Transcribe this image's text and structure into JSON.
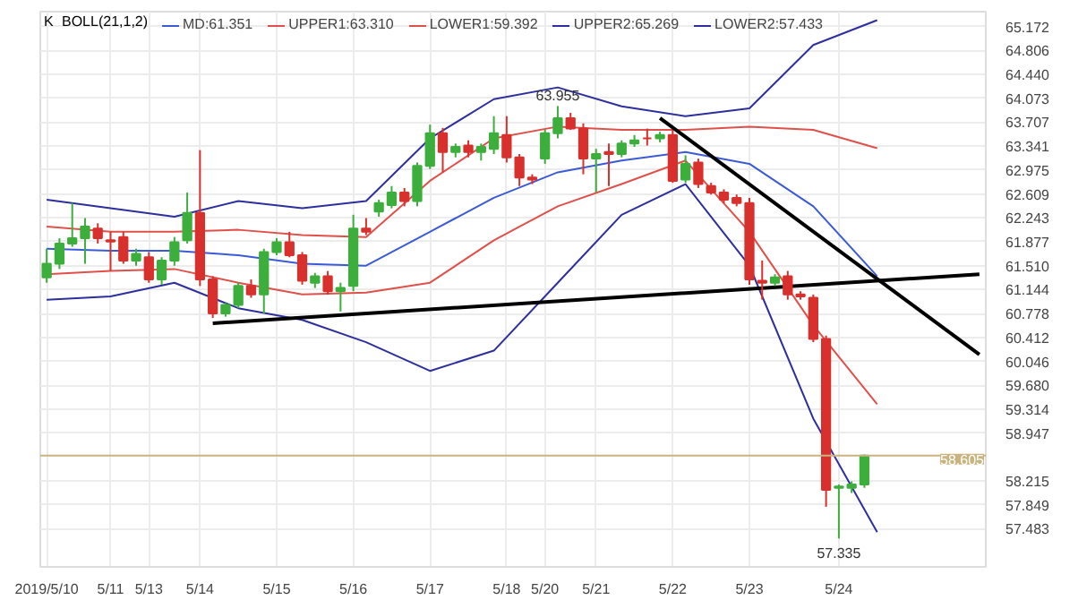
{
  "chart_data": {
    "type": "candlestick",
    "title": "K",
    "subtitle": "BOLL(21,1,2)",
    "categories": [
      "2019/5/10",
      null,
      null,
      null,
      null,
      "5/11",
      null,
      null,
      "5/13",
      null,
      null,
      null,
      "5/14",
      null,
      null,
      null,
      null,
      null,
      "5/15",
      null,
      null,
      null,
      null,
      null,
      "5/16",
      null,
      null,
      null,
      null,
      null,
      "5/17",
      null,
      null,
      null,
      null,
      null,
      "5/18",
      null,
      null,
      "5/20",
      null,
      null,
      null,
      "5/21",
      null,
      null,
      null,
      null,
      null,
      "5/22",
      null,
      null,
      null,
      null,
      null,
      "5/23",
      null,
      null,
      null,
      null,
      null,
      null,
      "5/24",
      null,
      null,
      null,
      null,
      null,
      null,
      null,
      null,
      null,
      null,
      null
    ],
    "ohlc": [
      [
        61.33,
        61.77,
        61.25,
        61.54
      ],
      [
        61.54,
        61.93,
        61.46,
        61.85
      ],
      [
        61.85,
        62.47,
        61.8,
        61.93
      ],
      [
        61.93,
        62.24,
        61.54,
        62.11
      ],
      [
        62.08,
        62.16,
        61.85,
        61.93
      ],
      [
        61.9,
        62.03,
        61.43,
        61.88
      ],
      [
        61.95,
        62.03,
        61.54,
        61.59
      ],
      [
        61.59,
        61.77,
        61.51,
        61.69
      ],
      [
        61.64,
        61.72,
        61.25,
        61.3
      ],
      [
        61.3,
        61.64,
        61.22,
        61.59
      ],
      [
        61.59,
        61.95,
        61.51,
        61.87
      ],
      [
        61.9,
        62.63,
        61.85,
        62.32
      ],
      [
        62.32,
        63.28,
        61.2,
        61.3
      ],
      [
        61.3,
        61.35,
        60.71,
        60.78
      ],
      [
        60.78,
        60.94,
        60.73,
        60.91
      ],
      [
        60.91,
        61.25,
        60.86,
        61.2
      ],
      [
        61.2,
        61.3,
        61.02,
        61.07
      ],
      [
        61.07,
        61.77,
        60.78,
        61.72
      ],
      [
        61.72,
        61.93,
        61.67,
        61.87
      ],
      [
        61.87,
        62.03,
        61.64,
        61.67
      ],
      [
        61.67,
        61.72,
        61.22,
        61.28
      ],
      [
        61.25,
        61.4,
        61.17,
        61.35
      ],
      [
        61.35,
        61.43,
        61.07,
        61.12
      ],
      [
        61.12,
        61.25,
        60.81,
        61.17
      ],
      [
        61.2,
        62.29,
        61.12,
        62.08
      ],
      [
        62.08,
        62.24,
        61.98,
        62.03
      ],
      [
        62.34,
        62.52,
        62.26,
        62.47
      ],
      [
        62.44,
        62.73,
        62.39,
        62.63
      ],
      [
        62.63,
        62.7,
        62.42,
        62.5
      ],
      [
        62.5,
        63.09,
        62.42,
        63.04
      ],
      [
        63.04,
        63.67,
        62.99,
        63.54
      ],
      [
        63.54,
        63.62,
        62.94,
        63.25
      ],
      [
        63.25,
        63.38,
        63.17,
        63.33
      ],
      [
        63.35,
        63.43,
        63.17,
        63.25
      ],
      [
        63.25,
        63.38,
        63.12,
        63.33
      ],
      [
        63.3,
        63.8,
        63.22,
        63.54
      ],
      [
        63.51,
        63.8,
        63.09,
        63.17
      ],
      [
        63.17,
        63.22,
        62.73,
        62.86
      ],
      [
        62.86,
        62.91,
        62.76,
        62.83
      ],
      [
        63.15,
        63.59,
        63.07,
        63.54
      ],
      [
        63.54,
        63.955,
        63.46,
        63.77
      ],
      [
        63.77,
        63.85,
        63.59,
        63.61
      ],
      [
        63.61,
        63.69,
        62.91,
        63.15
      ],
      [
        63.15,
        63.3,
        62.63,
        63.22
      ],
      [
        63.25,
        63.38,
        62.73,
        63.22
      ],
      [
        63.22,
        63.43,
        63.17,
        63.38
      ],
      [
        63.38,
        63.51,
        63.33,
        63.43
      ],
      [
        63.46,
        63.61,
        63.35,
        63.46
      ],
      [
        63.46,
        63.56,
        63.4,
        63.51
      ],
      [
        63.51,
        63.59,
        62.78,
        62.81
      ],
      [
        62.83,
        63.2,
        62.78,
        63.07
      ],
      [
        63.09,
        63.15,
        62.7,
        62.76
      ],
      [
        62.73,
        62.78,
        62.6,
        62.63
      ],
      [
        62.63,
        62.68,
        62.47,
        62.52
      ],
      [
        62.55,
        62.6,
        62.42,
        62.47
      ],
      [
        62.47,
        62.55,
        61.22,
        61.3
      ],
      [
        61.28,
        61.59,
        60.99,
        61.25
      ],
      [
        61.25,
        61.38,
        61.2,
        61.33
      ],
      [
        61.35,
        61.43,
        60.99,
        61.07
      ],
      [
        61.07,
        61.12,
        60.99,
        61.04
      ],
      [
        61.02,
        61.07,
        60.34,
        60.39
      ],
      [
        60.39,
        60.44,
        57.82,
        58.08
      ],
      [
        58.11,
        58.16,
        57.335,
        58.13
      ],
      [
        58.11,
        58.21,
        58.03,
        58.16
      ],
      [
        58.16,
        58.62,
        58.11,
        58.605
      ],
      null,
      null,
      null,
      null,
      null,
      null,
      null,
      null,
      null
    ],
    "colors": [
      "#3cae3c",
      "#3cae3c",
      "#3cae3c",
      "#3cae3c",
      "#d8302c",
      "#d8302c",
      "#d8302c",
      "#3cae3c",
      "#d8302c",
      "#3cae3c",
      "#3cae3c",
      "#3cae3c",
      "#d8302c",
      "#d8302c",
      "#3cae3c",
      "#3cae3c",
      "#d8302c",
      "#3cae3c",
      "#3cae3c",
      "#d8302c",
      "#d8302c",
      "#3cae3c",
      "#d8302c",
      "#3cae3c",
      "#3cae3c",
      "#d8302c",
      "#3cae3c",
      "#3cae3c",
      "#d8302c",
      "#3cae3c",
      "#3cae3c",
      "#d8302c",
      "#3cae3c",
      "#d8302c",
      "#3cae3c",
      "#3cae3c",
      "#d8302c",
      "#d8302c",
      "#d8302c",
      "#3cae3c",
      "#3cae3c",
      "#d8302c",
      "#d8302c",
      "#3cae3c",
      "#d8302c",
      "#3cae3c",
      "#3cae3c",
      "#d8302c",
      "#3cae3c",
      "#d8302c",
      "#3cae3c",
      "#d8302c",
      "#d8302c",
      "#d8302c",
      "#d8302c",
      "#d8302c",
      "#d8302c",
      "#3cae3c",
      "#d8302c",
      "#d8302c",
      "#d8302c",
      "#d8302c",
      "#3cae3c",
      "#3cae3c",
      "#3cae3c",
      null,
      null,
      null,
      null,
      null,
      null,
      null,
      null,
      null
    ],
    "series": [
      {
        "type": "line",
        "name": "MD:61.351",
        "color": "#3b5bd6",
        "values": [
          61.77,
          null,
          null,
          null,
          null,
          61.74,
          null,
          null,
          null,
          null,
          61.74,
          null,
          null,
          null,
          null,
          61.67,
          null,
          null,
          null,
          null,
          61.54,
          null,
          null,
          null,
          null,
          61.51,
          null,
          null,
          null,
          null,
          62.03,
          null,
          null,
          null,
          null,
          62.55,
          null,
          null,
          null,
          null,
          62.94,
          null,
          null,
          null,
          null,
          63.12,
          null,
          null,
          null,
          null,
          63.25,
          null,
          null,
          null,
          null,
          63.07,
          null,
          null,
          null,
          null,
          62.42,
          null,
          null,
          null,
          null,
          61.35,
          null,
          null,
          null,
          null,
          null,
          null,
          null,
          null
        ]
      },
      {
        "type": "line",
        "name": "UPPER1:63.310",
        "color": "#e0504a",
        "values": [
          62.11,
          null,
          null,
          null,
          null,
          62.03,
          null,
          null,
          null,
          null,
          62.03,
          null,
          null,
          null,
          null,
          62.06,
          null,
          null,
          null,
          null,
          61.98,
          null,
          null,
          null,
          null,
          61.95,
          null,
          null,
          null,
          null,
          62.81,
          null,
          null,
          null,
          null,
          63.46,
          null,
          null,
          null,
          null,
          63.64,
          null,
          null,
          null,
          null,
          63.59,
          null,
          null,
          null,
          null,
          63.59,
          null,
          null,
          null,
          null,
          63.64,
          null,
          null,
          null,
          null,
          63.59,
          null,
          null,
          null,
          null,
          63.31,
          null,
          null,
          null,
          null,
          null,
          null,
          null,
          null
        ]
      },
      {
        "type": "line",
        "name": "LOWER1:59.392",
        "color": "#e0504a",
        "values": [
          61.38,
          null,
          null,
          null,
          null,
          61.43,
          null,
          null,
          null,
          null,
          61.46,
          null,
          null,
          null,
          null,
          61.25,
          null,
          null,
          null,
          null,
          61.07,
          null,
          null,
          null,
          null,
          61.1,
          null,
          null,
          null,
          null,
          61.25,
          null,
          null,
          null,
          null,
          61.9,
          null,
          null,
          null,
          null,
          62.42,
          null,
          null,
          null,
          null,
          62.76,
          null,
          null,
          null,
          null,
          63.12,
          null,
          null,
          null,
          null,
          62.03,
          null,
          null,
          null,
          null,
          60.6,
          null,
          null,
          null,
          null,
          59.39,
          null,
          null,
          null,
          null,
          null,
          null,
          null,
          null
        ]
      },
      {
        "type": "line",
        "name": "UPPER2:65.269",
        "color": "#2d2f9e",
        "values": [
          62.52,
          null,
          null,
          null,
          null,
          62.39,
          null,
          null,
          null,
          null,
          62.26,
          null,
          null,
          null,
          null,
          62.5,
          null,
          null,
          null,
          null,
          62.39,
          null,
          null,
          null,
          null,
          62.5,
          null,
          null,
          null,
          null,
          63.46,
          null,
          null,
          null,
          null,
          64.06,
          null,
          null,
          null,
          null,
          64.24,
          null,
          null,
          null,
          null,
          63.95,
          null,
          null,
          null,
          null,
          63.8,
          null,
          null,
          null,
          null,
          63.92,
          null,
          null,
          null,
          null,
          64.89,
          null,
          null,
          null,
          null,
          65.27,
          null,
          null,
          null,
          null,
          null,
          null,
          null,
          null
        ]
      },
      {
        "type": "line",
        "name": "LOWER2:57.433",
        "color": "#2d2f9e",
        "values": [
          60.99,
          null,
          null,
          null,
          null,
          61.04,
          null,
          null,
          null,
          null,
          61.25,
          null,
          null,
          null,
          null,
          60.86,
          null,
          null,
          null,
          null,
          60.68,
          null,
          null,
          null,
          null,
          60.34,
          null,
          null,
          null,
          null,
          59.9,
          null,
          null,
          null,
          null,
          60.21,
          null,
          null,
          null,
          null,
          61.25,
          null,
          null,
          null,
          null,
          62.29,
          null,
          null,
          null,
          null,
          62.76,
          null,
          null,
          null,
          null,
          61.51,
          null,
          null,
          null,
          null,
          59.17,
          null,
          null,
          null,
          null,
          57.43,
          null,
          null,
          null,
          null,
          null,
          null,
          null,
          null
        ]
      },
      {
        "type": "line",
        "color": "#000000",
        "values": [
          null,
          null,
          null,
          null,
          null,
          null,
          null,
          null,
          null,
          null,
          null,
          null,
          null,
          60.63,
          null,
          null,
          null,
          null,
          null,
          null,
          null,
          null,
          null,
          null,
          null,
          null,
          null,
          null,
          null,
          null,
          null,
          null,
          null,
          null,
          null,
          null,
          null,
          null,
          null,
          null,
          null,
          null,
          null,
          null,
          null,
          null,
          null,
          null,
          null,
          null,
          null,
          null,
          null,
          null,
          null,
          null,
          null,
          null,
          null,
          null,
          null,
          null,
          null,
          null,
          null,
          null,
          null,
          null,
          null,
          null,
          null,
          null,
          null,
          61.38
        ]
      },
      {
        "type": "line",
        "color": "#000000",
        "values": [
          null,
          null,
          null,
          null,
          null,
          null,
          null,
          null,
          null,
          null,
          null,
          null,
          null,
          null,
          null,
          null,
          null,
          null,
          null,
          null,
          null,
          null,
          null,
          null,
          null,
          null,
          null,
          null,
          null,
          null,
          null,
          null,
          null,
          null,
          null,
          null,
          null,
          null,
          null,
          null,
          null,
          null,
          null,
          null,
          null,
          null,
          null,
          null,
          63.77,
          null,
          null,
          null,
          null,
          null,
          null,
          null,
          null,
          null,
          null,
          null,
          null,
          null,
          null,
          null,
          null,
          null,
          null,
          null,
          null,
          null,
          null,
          null,
          null,
          60.15
        ]
      }
    ],
    "ylim": [
      56.9,
      65.4
    ],
    "yticks": [
      65.172,
      64.806,
      {
        "value": 64.44,
        "label": "64.440"
      },
      64.073,
      63.707,
      63.341,
      62.975,
      62.609,
      62.243,
      61.877,
      {
        "value": 61.51,
        "label": "61.510"
      },
      61.144,
      60.778,
      60.412,
      60.046,
      {
        "value": 59.68,
        "label": "59.680"
      },
      59.314,
      58.947,
      58.215,
      57.849,
      57.483
    ],
    "grid": true,
    "legend": "top left",
    "ref_lines": [
      {
        "axis": "y",
        "value": 58.605,
        "label": "58.605",
        "color": "#c9b37e"
      }
    ],
    "annotations": [
      {
        "text": "63.955",
        "y": 63.955
      },
      {
        "text": "57.335",
        "x": "5/24",
        "y": 57.335
      }
    ]
  }
}
